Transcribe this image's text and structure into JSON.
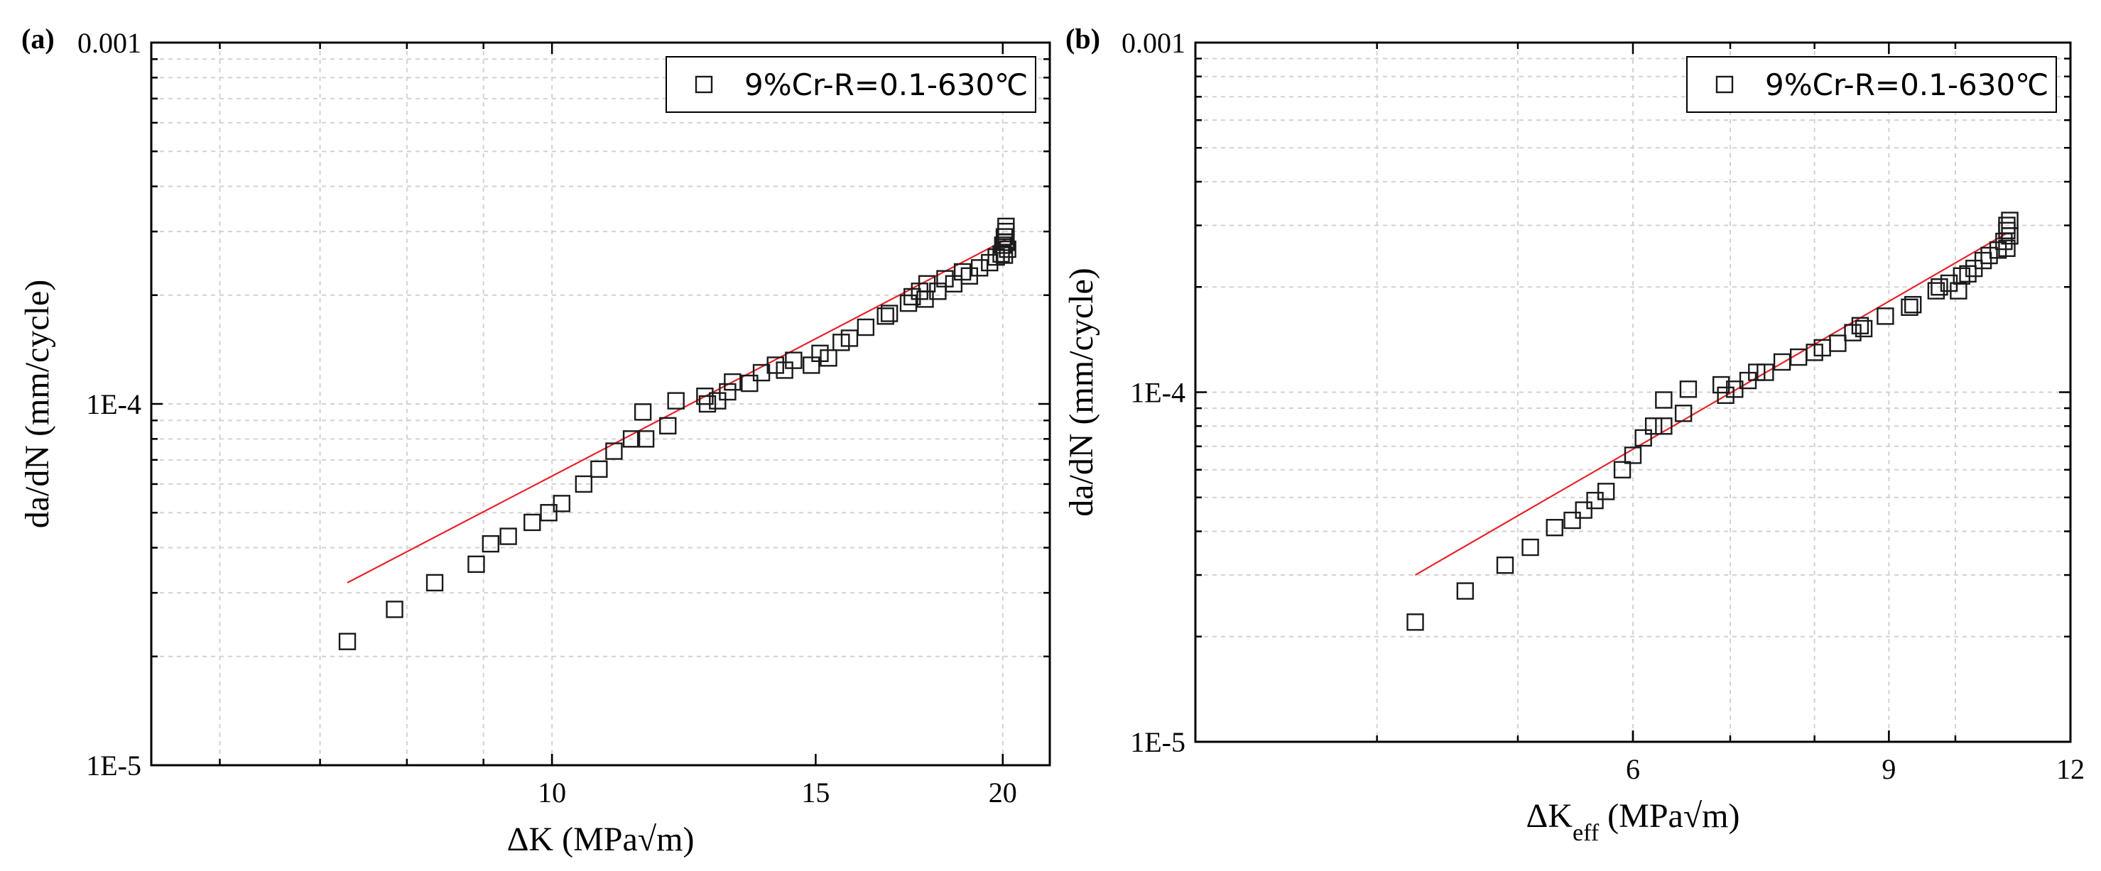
{
  "chart_data": [
    {
      "type": "scatter",
      "panel_label": "(a)",
      "xlabel_prefix": "ΔK",
      "xlabel_sub": "",
      "xlabel_suffix": " (MPa√m)",
      "ylabel": "da/dN (mm/cycle)",
      "xscale": "log",
      "yscale": "log",
      "xlim": [
        5.4,
        21.5
      ],
      "ylim": [
        1e-05,
        0.001
      ],
      "xticks": [
        10,
        15,
        20
      ],
      "xtick_labels": [
        "10",
        "15",
        "20"
      ],
      "yticks": [
        1e-05,
        0.0001,
        0.001
      ],
      "ytick_labels": [
        "1E-5",
        "1E-4",
        "0.001"
      ],
      "grid": true,
      "legend": {
        "position": "top-right",
        "label": "9%Cr-R=0.1-630℃"
      },
      "fit_line": {
        "x": [
          7.3,
          20.1
        ],
        "y": [
          3.2e-05,
          0.000285
        ]
      },
      "series": [
        {
          "name": "9%Cr-R=0.1-630℃",
          "x": [
            7.3,
            7.85,
            8.35,
            8.9,
            9.1,
            9.35,
            9.7,
            9.95,
            10.15,
            10.5,
            10.75,
            11.0,
            11.3,
            11.5,
            11.55,
            11.95,
            12.1,
            12.65,
            12.7,
            12.9,
            13.1,
            13.2,
            13.55,
            13.8,
            14.1,
            14.3,
            14.5,
            14.9,
            15.1,
            15.3,
            15.6,
            15.8,
            16.2,
            16.7,
            16.8,
            17.3,
            17.4,
            17.6,
            17.75,
            17.8,
            18.1,
            18.3,
            18.55,
            18.8,
            19.0,
            19.3,
            19.6,
            19.8,
            19.95,
            20.0,
            20.05,
            20.1,
            20.1,
            20.15,
            20.05,
            20.1
          ],
          "y": [
            2.2e-05,
            2.7e-05,
            3.2e-05,
            3.6e-05,
            4.1e-05,
            4.3e-05,
            4.7e-05,
            5e-05,
            5.3e-05,
            6e-05,
            6.6e-05,
            7.4e-05,
            8e-05,
            9.5e-05,
            8e-05,
            8.7e-05,
            0.000102,
            0.000105,
            0.0001,
            0.000102,
            0.000108,
            0.000115,
            0.000114,
            0.000122,
            0.000128,
            0.000124,
            0.000132,
            0.000128,
            0.000138,
            0.000134,
            0.000148,
            0.000152,
            0.000163,
            0.000175,
            0.000178,
            0.00019,
            0.000198,
            0.000205,
            0.000195,
            0.000215,
            0.000205,
            0.000222,
            0.000215,
            0.000232,
            0.000226,
            0.000238,
            0.000246,
            0.000255,
            0.00026,
            0.000275,
            0.00029,
            0.0003,
            0.00028,
            0.000268,
            0.000258,
            0.00031
          ]
        }
      ]
    },
    {
      "type": "scatter",
      "panel_label": "(b)",
      "xlabel_prefix": "ΔK",
      "xlabel_sub": "eff",
      "xlabel_suffix": " (MPa√m)",
      "ylabel": "da/dN (mm/cycle)",
      "xscale": "log",
      "yscale": "log",
      "xlim": [
        3.0,
        12.0
      ],
      "ylim": [
        1e-05,
        0.001
      ],
      "xticks": [
        6,
        9,
        12
      ],
      "xtick_labels": [
        "6",
        "9",
        "12"
      ],
      "yticks": [
        1e-05,
        0.0001,
        0.001
      ],
      "ytick_labels": [
        "1E-5",
        "1E-4",
        "0.001"
      ],
      "grid": true,
      "legend": {
        "position": "top-right",
        "label": "9%Cr-R=0.1-630℃"
      },
      "fit_line": {
        "x": [
          4.25,
          10.85
        ],
        "y": [
          3e-05,
          0.000285
        ]
      },
      "series": [
        {
          "name": "9%Cr-R=0.1-630℃",
          "x": [
            4.25,
            4.6,
            4.9,
            5.1,
            5.3,
            5.45,
            5.55,
            5.65,
            5.75,
            5.9,
            6.0,
            6.1,
            6.2,
            6.3,
            6.3,
            6.5,
            6.55,
            6.9,
            6.95,
            7.05,
            7.2,
            7.3,
            7.4,
            7.6,
            7.8,
            8.0,
            8.1,
            8.3,
            8.5,
            8.6,
            8.65,
            8.95,
            9.3,
            9.35,
            9.7,
            9.75,
            9.9,
            10.05,
            10.1,
            10.2,
            10.3,
            10.45,
            10.55,
            10.7,
            10.8,
            10.85,
            10.85,
            10.9,
            10.85,
            10.9
          ],
          "y": [
            2.2e-05,
            2.7e-05,
            3.2e-05,
            3.6e-05,
            4.1e-05,
            4.3e-05,
            4.6e-05,
            4.9e-05,
            5.2e-05,
            6e-05,
            6.6e-05,
            7.4e-05,
            8e-05,
            8e-05,
            9.5e-05,
            8.7e-05,
            0.000102,
            0.000105,
            9.8e-05,
            0.000102,
            0.000108,
            0.000114,
            0.000114,
            0.000122,
            0.000126,
            0.00013,
            0.000134,
            0.000138,
            0.000148,
            0.000155,
            0.000152,
            0.000165,
            0.000175,
            0.000178,
            0.000195,
            0.0002,
            0.000205,
            0.000195,
            0.000215,
            0.000218,
            0.000226,
            0.000238,
            0.000246,
            0.000255,
            0.00027,
            0.00029,
            0.0003,
            0.00028,
            0.000258,
            0.00031
          ]
        }
      ]
    }
  ]
}
